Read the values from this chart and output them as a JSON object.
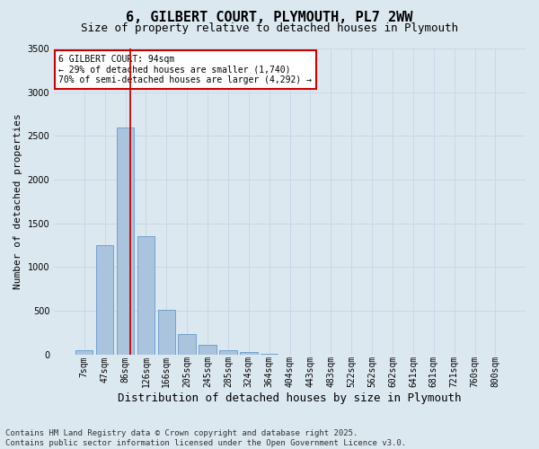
{
  "title": "6, GILBERT COURT, PLYMOUTH, PL7 2WW",
  "subtitle": "Size of property relative to detached houses in Plymouth",
  "xlabel": "Distribution of detached houses by size in Plymouth",
  "ylabel": "Number of detached properties",
  "categories": [
    "7sqm",
    "47sqm",
    "86sqm",
    "126sqm",
    "166sqm",
    "205sqm",
    "245sqm",
    "285sqm",
    "324sqm",
    "364sqm",
    "404sqm",
    "443sqm",
    "483sqm",
    "522sqm",
    "562sqm",
    "602sqm",
    "641sqm",
    "681sqm",
    "721sqm",
    "760sqm",
    "800sqm"
  ],
  "values": [
    50,
    1250,
    2600,
    1350,
    510,
    230,
    115,
    50,
    30,
    8,
    2,
    0,
    0,
    0,
    0,
    0,
    0,
    0,
    0,
    0,
    0
  ],
  "bar_color": "#aac4de",
  "bar_edge_color": "#6699cc",
  "grid_color": "#c8d8e8",
  "background_color": "#dce8f0",
  "vline_x_index": 2,
  "vline_x_offset": 0.25,
  "vline_color": "#cc0000",
  "annotation_text": "6 GILBERT COURT: 94sqm\n← 29% of detached houses are smaller (1,740)\n70% of semi-detached houses are larger (4,292) →",
  "annotation_box_facecolor": "#ffffff",
  "annotation_box_edgecolor": "#cc0000",
  "ylim": [
    0,
    3500
  ],
  "yticks": [
    0,
    500,
    1000,
    1500,
    2000,
    2500,
    3000,
    3500
  ],
  "footer": "Contains HM Land Registry data © Crown copyright and database right 2025.\nContains public sector information licensed under the Open Government Licence v3.0.",
  "title_fontsize": 11,
  "subtitle_fontsize": 9,
  "xlabel_fontsize": 9,
  "ylabel_fontsize": 8,
  "tick_fontsize": 7,
  "annotation_fontsize": 7,
  "footer_fontsize": 6.5
}
